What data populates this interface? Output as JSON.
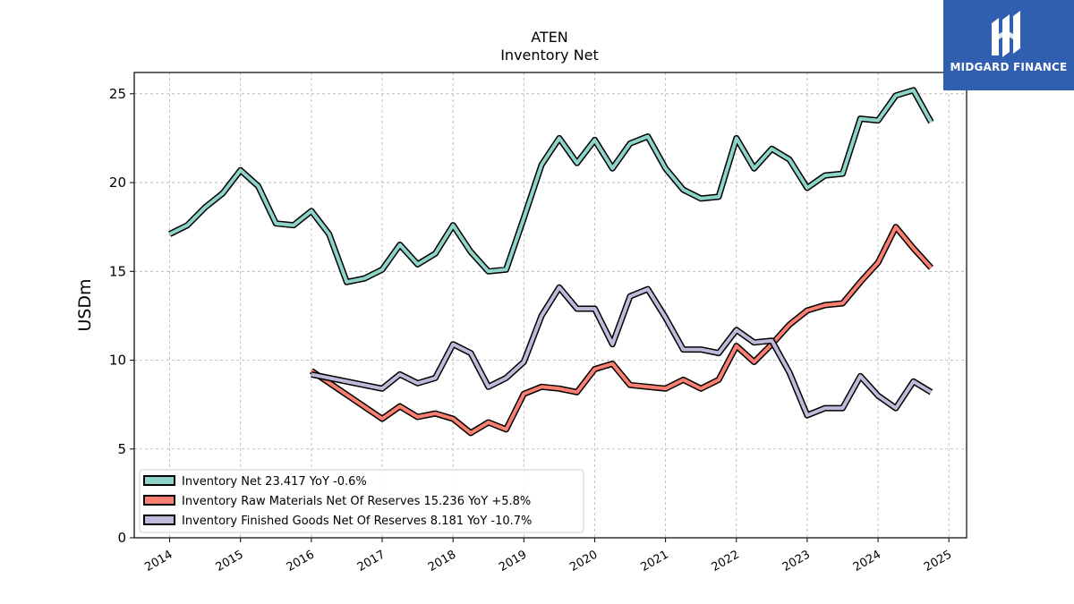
{
  "logo": {
    "text": "MIDGARD FINANCE",
    "color": "#2f5fae",
    "icon": "midgard-logo-icon"
  },
  "chart_data": {
    "type": "line",
    "title": "ATEN",
    "subtitle": "Inventory Net",
    "xlabel": "",
    "ylabel": "USDm",
    "xlim": [
      2013.5,
      2025.25
    ],
    "ylim": [
      0,
      26.2
    ],
    "x_ticks": [
      2014,
      2015,
      2016,
      2017,
      2018,
      2019,
      2020,
      2021,
      2022,
      2023,
      2024,
      2025
    ],
    "x_tick_labels": [
      "2014",
      "2015",
      "2016",
      "2017",
      "2018",
      "2019",
      "2020",
      "2021",
      "2022",
      "2023",
      "2024",
      "2025"
    ],
    "y_ticks": [
      0,
      5,
      10,
      15,
      20,
      25
    ],
    "y_tick_labels": [
      "0",
      "5",
      "10",
      "15",
      "20",
      "25"
    ],
    "grid": true,
    "legend_position": "bottom-left",
    "series": [
      {
        "name": "Inventory Net",
        "legend_label": "Inventory Net  23.417 YoY -0.6%",
        "color": "#8dd3c7",
        "x": [
          2014.0,
          2014.25,
          2014.5,
          2014.75,
          2015.0,
          2015.25,
          2015.5,
          2015.75,
          2016.0,
          2016.25,
          2016.5,
          2016.75,
          2017.0,
          2017.25,
          2017.5,
          2017.75,
          2018.0,
          2018.25,
          2018.5,
          2018.75,
          2019.0,
          2019.25,
          2019.5,
          2019.75,
          2020.0,
          2020.25,
          2020.5,
          2020.75,
          2021.0,
          2021.25,
          2021.5,
          2021.75,
          2022.0,
          2022.25,
          2022.5,
          2022.75,
          2023.0,
          2023.25,
          2023.5,
          2023.75,
          2024.0,
          2024.25,
          2024.5,
          2024.75
        ],
        "values": [
          17.1,
          17.6,
          18.6,
          19.4,
          20.7,
          19.8,
          17.7,
          17.6,
          18.4,
          17.1,
          14.4,
          14.6,
          15.1,
          16.5,
          15.4,
          16.0,
          17.6,
          16.1,
          15.0,
          15.1,
          18.0,
          21.0,
          22.5,
          21.1,
          22.4,
          20.8,
          22.2,
          22.6,
          20.8,
          19.6,
          19.1,
          19.2,
          22.5,
          20.8,
          21.9,
          21.3,
          19.7,
          20.4,
          20.5,
          23.6,
          23.5,
          24.9,
          25.2,
          23.4
        ]
      },
      {
        "name": "Inventory Raw Materials Net Of Reserves",
        "legend_label": "Inventory Raw Materials Net Of Reserves  15.236 YoY +5.8%",
        "color": "#fb8072",
        "x": [
          2016.0,
          2017.0,
          2017.25,
          2017.5,
          2017.75,
          2018.0,
          2018.25,
          2018.5,
          2018.75,
          2019.0,
          2019.25,
          2019.5,
          2019.75,
          2020.0,
          2020.25,
          2020.5,
          2020.75,
          2021.0,
          2021.25,
          2021.5,
          2021.75,
          2022.0,
          2022.25,
          2022.5,
          2022.75,
          2023.0,
          2023.25,
          2023.5,
          2023.75,
          2024.0,
          2024.25,
          2024.5,
          2024.75
        ],
        "values": [
          9.4,
          6.7,
          7.4,
          6.8,
          7.0,
          6.7,
          5.9,
          6.5,
          6.1,
          8.1,
          8.5,
          8.4,
          8.2,
          9.5,
          9.8,
          8.6,
          8.5,
          8.4,
          8.9,
          8.4,
          8.9,
          10.8,
          9.9,
          10.9,
          12.0,
          12.8,
          13.1,
          13.2,
          14.4,
          15.5,
          17.5,
          16.3,
          15.2
        ]
      },
      {
        "name": "Inventory Finished Goods Net Of Reserves",
        "legend_label": "Inventory Finished Goods Net Of Reserves  8.181 YoY -10.7%",
        "color": "#bebada",
        "x": [
          2016.0,
          2017.0,
          2017.25,
          2017.5,
          2017.75,
          2018.0,
          2018.25,
          2018.5,
          2018.75,
          2019.0,
          2019.25,
          2019.5,
          2019.75,
          2020.0,
          2020.25,
          2020.5,
          2020.75,
          2021.0,
          2021.25,
          2021.5,
          2021.75,
          2022.0,
          2022.25,
          2022.5,
          2022.75,
          2023.0,
          2023.25,
          2023.5,
          2023.75,
          2024.0,
          2024.25,
          2024.5,
          2024.75
        ],
        "values": [
          9.2,
          8.4,
          9.2,
          8.7,
          9.0,
          10.9,
          10.4,
          8.5,
          9.0,
          9.9,
          12.5,
          14.1,
          12.9,
          12.9,
          10.9,
          13.6,
          14.0,
          12.4,
          10.6,
          10.6,
          10.4,
          11.7,
          11.0,
          11.1,
          9.3,
          6.9,
          7.3,
          7.3,
          9.1,
          8.0,
          7.3,
          8.8,
          8.2
        ]
      }
    ]
  }
}
